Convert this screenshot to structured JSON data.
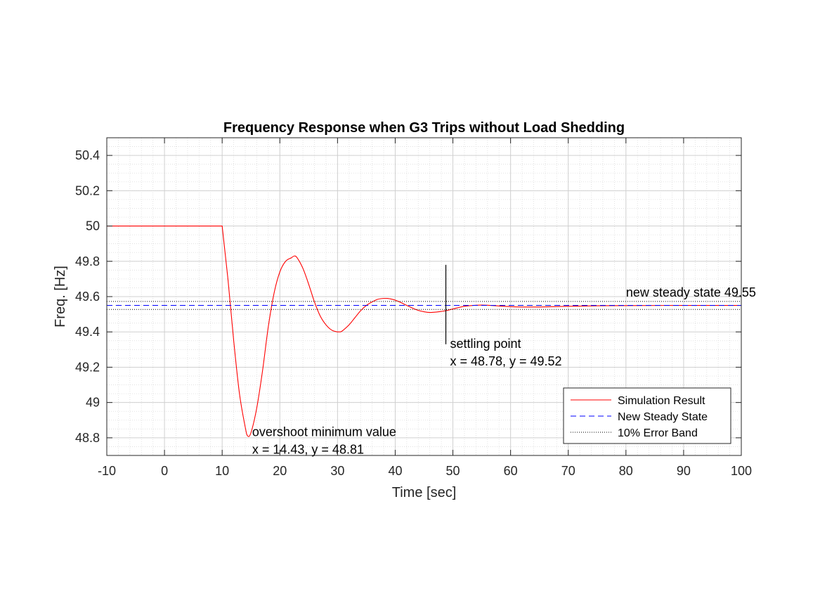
{
  "chart_data": {
    "type": "line",
    "title": "Frequency Response when G3 Trips without Load Shedding",
    "xlabel": "Time [sec]",
    "ylabel": "Freq. [Hz]",
    "xlim": [
      -10,
      100
    ],
    "ylim": [
      48.7,
      50.5
    ],
    "xticks": [
      -10,
      0,
      10,
      20,
      30,
      40,
      50,
      60,
      70,
      80,
      90,
      100
    ],
    "xtick_labels": [
      "-10",
      "0",
      "10",
      "20",
      "30",
      "40",
      "50",
      "60",
      "70",
      "80",
      "90",
      "100"
    ],
    "yticks": [
      48.8,
      49,
      49.2,
      49.4,
      49.6,
      49.8,
      50,
      50.2,
      50.4
    ],
    "ytick_labels": [
      "48.8",
      "49",
      "49.2",
      "49.4",
      "49.6",
      "49.8",
      "50",
      "50.2",
      "50.4"
    ],
    "grid": true,
    "minor_grid": true,
    "legend_position": "bottom-right",
    "series": [
      {
        "name": "Simulation Result",
        "color": "#ff0000",
        "style": "solid",
        "x": [
          -10,
          0,
          10,
          11,
          12,
          13,
          14,
          14.43,
          15,
          16,
          17,
          18,
          19,
          20,
          21,
          22,
          22.5,
          23,
          24,
          25,
          26,
          27,
          28,
          29,
          30,
          30.5,
          31,
          32,
          33,
          34,
          35,
          36,
          37,
          38,
          38.5,
          39,
          40,
          41,
          42,
          43,
          44,
          45,
          46,
          47,
          48,
          48.78,
          50,
          52,
          54,
          55,
          56,
          58,
          60,
          62,
          65,
          70,
          75,
          80,
          90,
          100
        ],
        "y": [
          50,
          50,
          50,
          49.7,
          49.35,
          49.05,
          48.86,
          48.81,
          48.83,
          48.97,
          49.18,
          49.43,
          49.62,
          49.74,
          49.8,
          49.82,
          49.83,
          49.82,
          49.76,
          49.67,
          49.57,
          49.49,
          49.44,
          49.41,
          49.4,
          49.4,
          49.41,
          49.44,
          49.48,
          49.52,
          49.55,
          49.57,
          49.585,
          49.59,
          49.59,
          49.588,
          49.58,
          49.566,
          49.55,
          49.535,
          49.522,
          49.514,
          49.51,
          49.512,
          49.516,
          49.52,
          49.53,
          49.545,
          49.551,
          49.552,
          49.551,
          49.547,
          49.543,
          49.541,
          49.541,
          49.545,
          49.548,
          49.549,
          49.55,
          49.55
        ]
      },
      {
        "name": "New Steady State",
        "color": "#0000ff",
        "style": "dashed",
        "x": [
          -10,
          100
        ],
        "y": [
          49.55,
          49.55
        ]
      },
      {
        "name": "10% Error Band",
        "color": "#000000",
        "style": "dotted",
        "bands": [
          49.5275,
          49.5725
        ]
      }
    ],
    "annotations": [
      {
        "lines": [
          "overshoot minimum value",
          "x = 14.43, y = 48.81"
        ],
        "x": 15.2,
        "y": 48.81
      },
      {
        "lines": [
          "settling point",
          "x = 48.78, y = 49.52"
        ],
        "x": 49.5,
        "y": 49.31,
        "marker_x": 48.78,
        "marker_y": [
          49.33,
          49.78
        ]
      },
      {
        "lines": [
          "new steady state 49.55"
        ],
        "x": 80,
        "y": 49.6
      }
    ]
  }
}
